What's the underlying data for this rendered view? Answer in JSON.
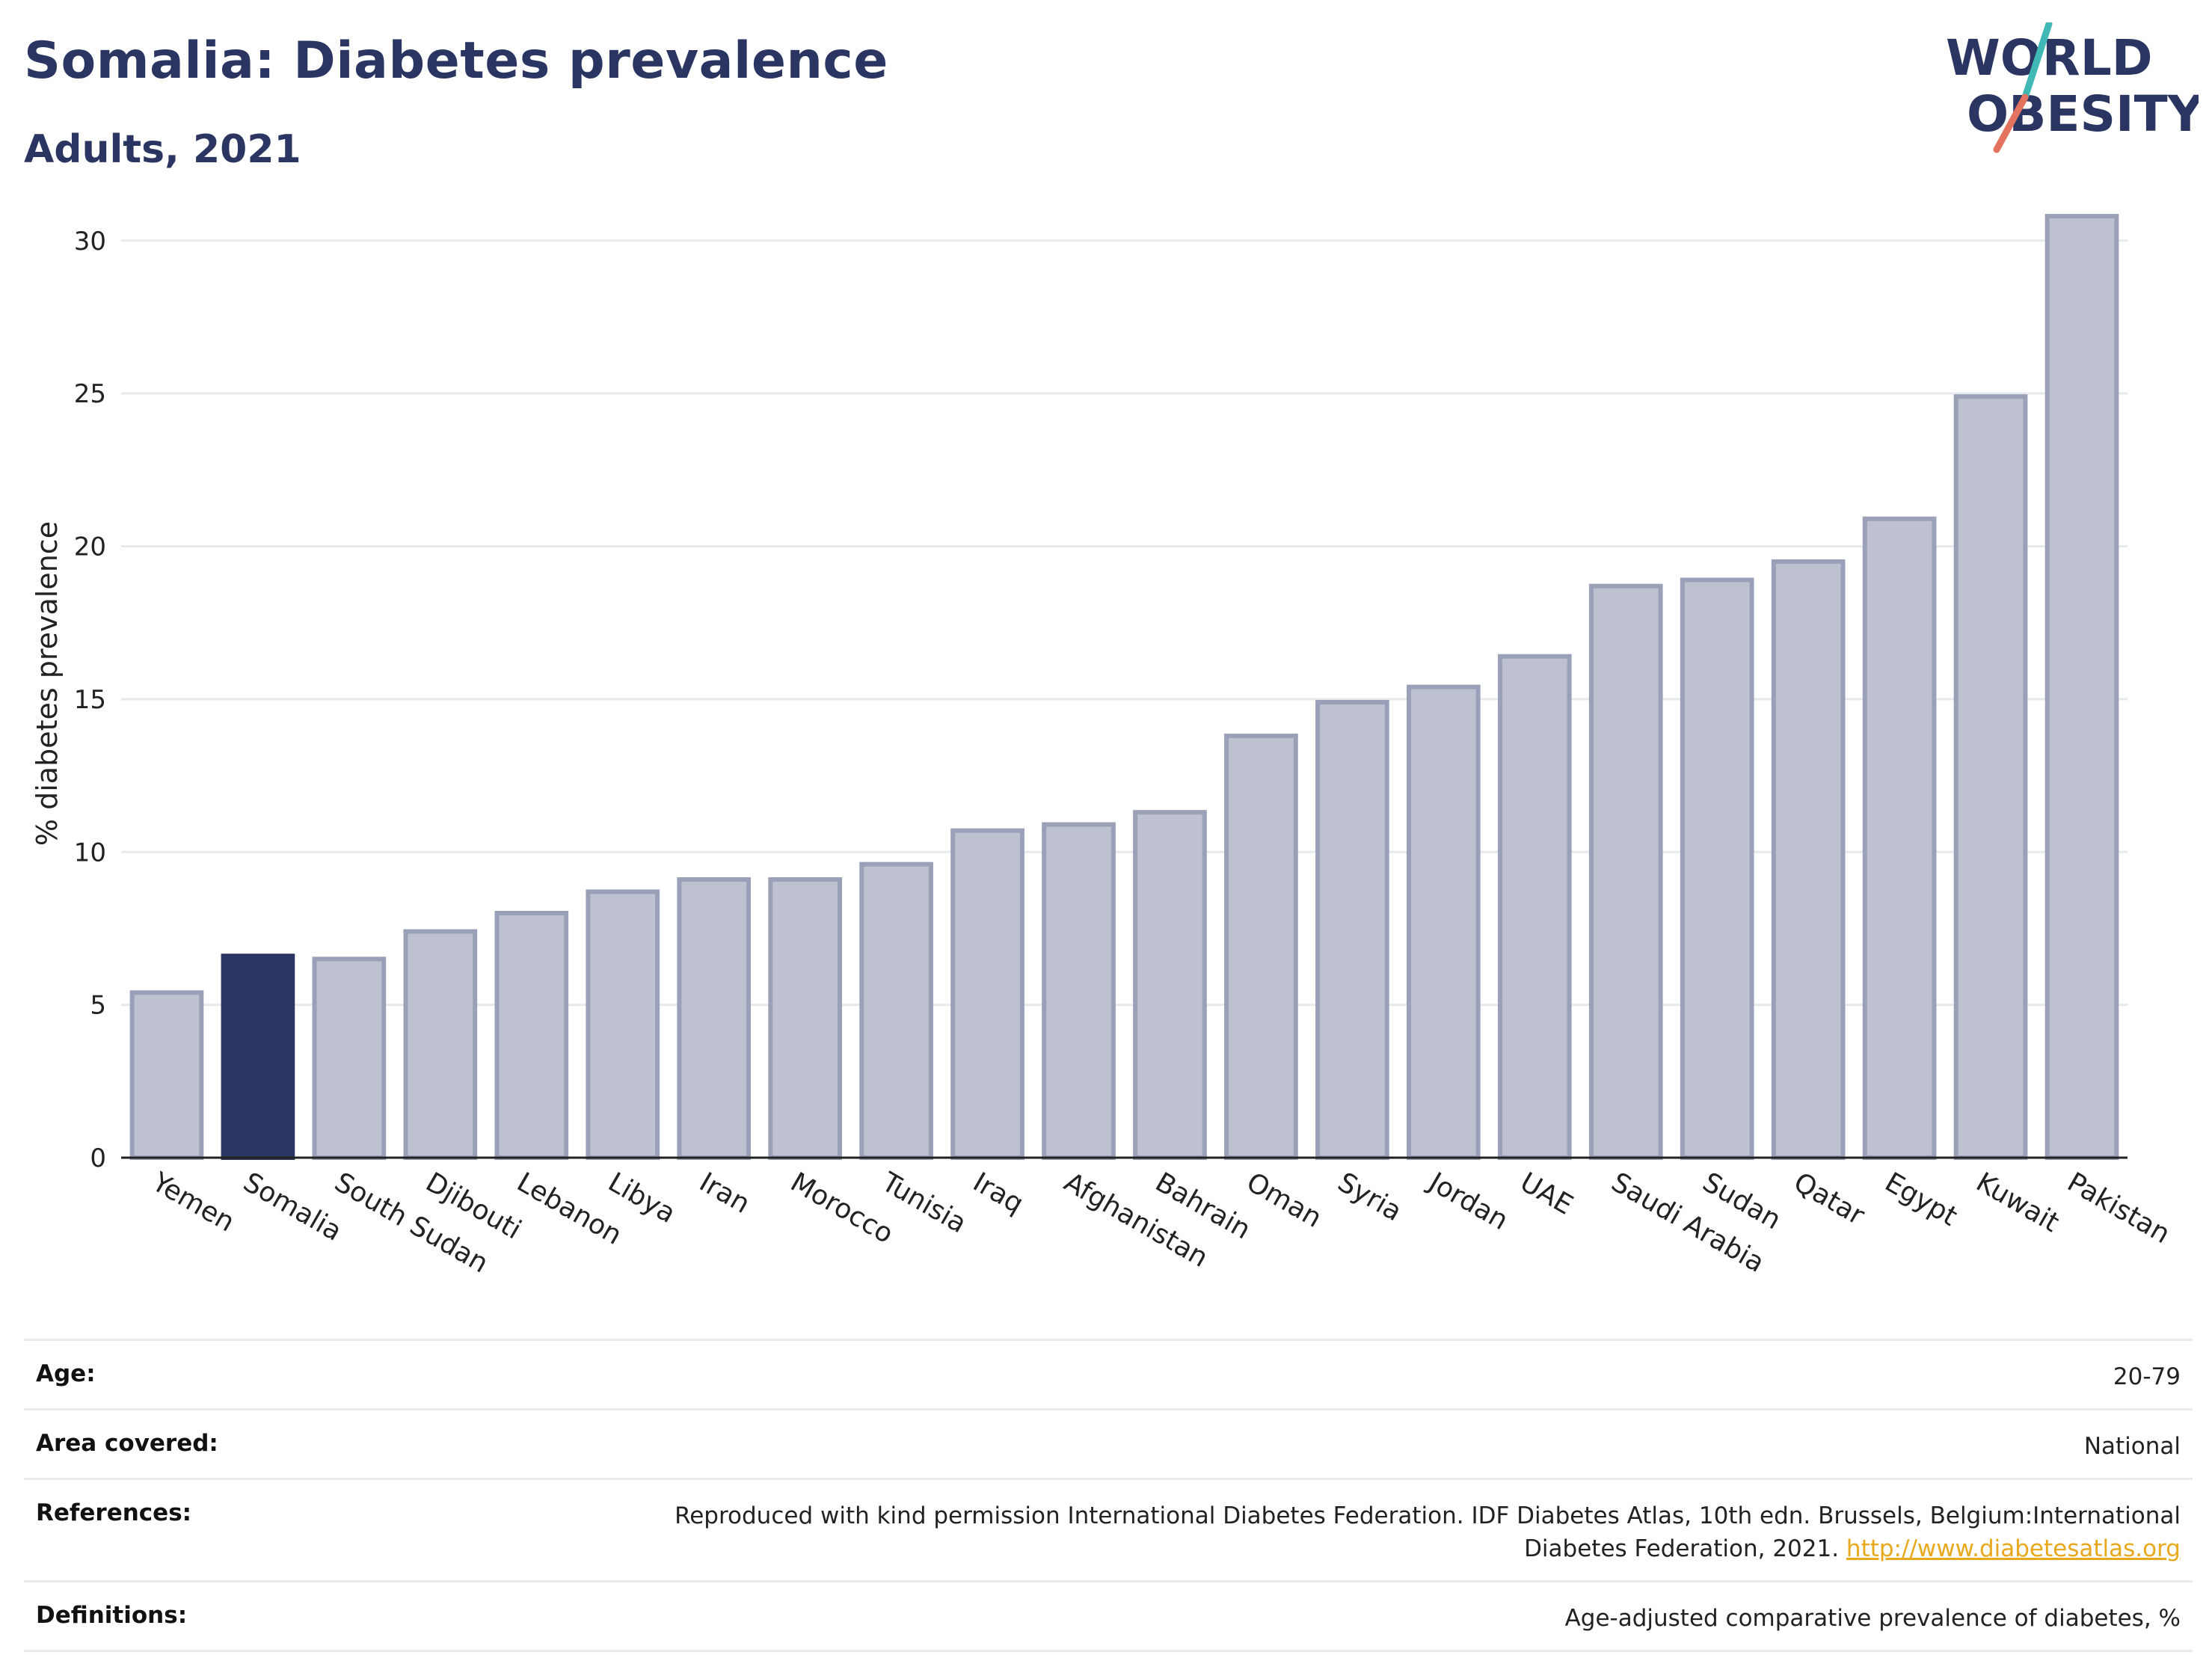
{
  "header": {
    "title": "Somalia: Diabetes prevalence",
    "subtitle": "Adults, 2021"
  },
  "logo": {
    "line1": "WORLD",
    "line2": "OBESITY"
  },
  "chart_data": {
    "type": "bar",
    "categories": [
      "Yemen",
      "Somalia",
      "South Sudan",
      "Djibouti",
      "Lebanon",
      "Libya",
      "Iran",
      "Morocco",
      "Tunisia",
      "Iraq",
      "Afghanistan",
      "Bahrain",
      "Oman",
      "Syria",
      "Jordan",
      "UAE",
      "Saudi Arabia",
      "Sudan",
      "Qatar",
      "Egypt",
      "Kuwait",
      "Pakistan"
    ],
    "values": [
      5.4,
      6.6,
      6.5,
      7.4,
      8.0,
      8.7,
      9.1,
      9.1,
      9.6,
      10.7,
      10.9,
      11.3,
      13.8,
      14.9,
      15.4,
      16.4,
      18.7,
      18.9,
      19.5,
      20.9,
      24.9,
      30.8
    ],
    "highlight": "Somalia",
    "ylabel": "% diabetes prevalence",
    "xlabel": "",
    "ylim": [
      0,
      32
    ],
    "yticks": [
      0,
      5,
      10,
      15,
      20,
      25,
      30
    ],
    "grid": true,
    "colors": {
      "bar": "#bec1cf",
      "bar_border": "#9aa0b8",
      "highlight": "#2b3562",
      "grid": "#e6e9ee"
    }
  },
  "meta": [
    {
      "label": "Age:",
      "value": "20-79"
    },
    {
      "label": "Area covered:",
      "value": "National"
    },
    {
      "label": "References:",
      "value": "Reproduced with kind permission International Diabetes Federation.  IDF Diabetes Atlas, 10th edn. Brussels, Belgium:International Diabetes Federation, 2021.",
      "link": "http://www.diabetesatlas.org"
    },
    {
      "label": "Definitions:",
      "value": "Age-adjusted comparative prevalence of diabetes, %"
    }
  ]
}
